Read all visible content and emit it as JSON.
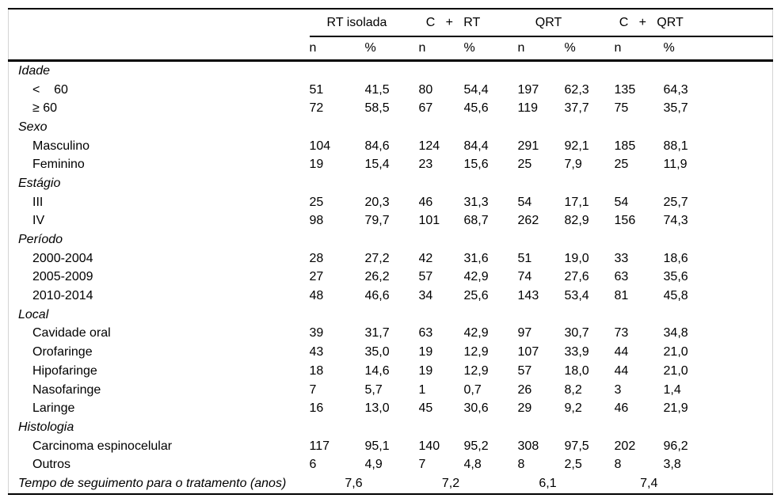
{
  "table": {
    "groups": [
      {
        "label": "RT isolada"
      },
      {
        "label": "C   +   RT"
      },
      {
        "label": "QRT"
      },
      {
        "label": "C   +   QRT"
      }
    ],
    "subheader": {
      "n": "n",
      "pct": "%"
    },
    "rows": [
      {
        "type": "section",
        "label": "Idade"
      },
      {
        "type": "item",
        "label": "<    60",
        "values": [
          "51",
          "41,5",
          "80",
          "54,4",
          "197",
          "62,3",
          "135",
          "64,3"
        ]
      },
      {
        "type": "item",
        "label": "≥ 60",
        "values": [
          "72",
          "58,5",
          "67",
          "45,6",
          "119",
          "37,7",
          "75",
          "35,7"
        ]
      },
      {
        "type": "section",
        "label": "Sexo"
      },
      {
        "type": "item",
        "label": "Masculino",
        "values": [
          "104",
          "84,6",
          "124",
          "84,4",
          "291",
          "92,1",
          "185",
          "88,1"
        ]
      },
      {
        "type": "item",
        "label": "Feminino",
        "values": [
          "19",
          "15,4",
          "23",
          "15,6",
          "25",
          "7,9",
          "25",
          "11,9"
        ]
      },
      {
        "type": "section",
        "label": "Estágio"
      },
      {
        "type": "item",
        "label": "III",
        "values": [
          "25",
          "20,3",
          "46",
          "31,3",
          "54",
          "17,1",
          "54",
          "25,7"
        ]
      },
      {
        "type": "item",
        "label": "IV",
        "values": [
          "98",
          "79,7",
          "101",
          "68,7",
          "262",
          "82,9",
          "156",
          "74,3"
        ]
      },
      {
        "type": "section",
        "label": "Período"
      },
      {
        "type": "item",
        "label": "2000-2004",
        "values": [
          "28",
          "27,2",
          "42",
          "31,6",
          "51",
          "19,0",
          "33",
          "18,6"
        ]
      },
      {
        "type": "item",
        "label": "2005-2009",
        "values": [
          "27",
          "26,2",
          "57",
          "42,9",
          "74",
          "27,6",
          "63",
          "35,6"
        ]
      },
      {
        "type": "item",
        "label": "2010-2014",
        "values": [
          "48",
          "46,6",
          "34",
          "25,6",
          "143",
          "53,4",
          "81",
          "45,8"
        ]
      },
      {
        "type": "section",
        "label": "Local"
      },
      {
        "type": "item",
        "label": "Cavidade oral",
        "values": [
          "39",
          "31,7",
          "63",
          "42,9",
          "97",
          "30,7",
          "73",
          "34,8"
        ]
      },
      {
        "type": "item",
        "label": "Orofaringe",
        "values": [
          "43",
          "35,0",
          "19",
          "12,9",
          "107",
          "33,9",
          "44",
          "21,0"
        ]
      },
      {
        "type": "item",
        "label": "Hipofaringe",
        "values": [
          "18",
          "14,6",
          "19",
          "12,9",
          "57",
          "18,0",
          "44",
          "21,0"
        ]
      },
      {
        "type": "item",
        "label": "Nasofaringe",
        "values": [
          "7",
          "5,7",
          "1",
          "0,7",
          "26",
          "8,2",
          "3",
          "1,4"
        ]
      },
      {
        "type": "item",
        "label": "Laringe",
        "values": [
          "16",
          "13,0",
          "45",
          "30,6",
          "29",
          "9,2",
          "46",
          "21,9"
        ]
      },
      {
        "type": "section",
        "label": "Histologia"
      },
      {
        "type": "item",
        "label": "Carcinoma espinocelular",
        "values": [
          "117",
          "95,1",
          "140",
          "95,2",
          "308",
          "97,5",
          "202",
          "96,2"
        ]
      },
      {
        "type": "item",
        "label": "Outros",
        "values": [
          "6",
          "4,9",
          "7",
          "4,8",
          "8",
          "2,5",
          "8",
          "3,8"
        ]
      },
      {
        "type": "footer",
        "label": "Tempo de seguimento para o tratamento (anos)",
        "group_values": [
          "7,6",
          "7,2",
          "6,1",
          "7,4"
        ]
      }
    ]
  }
}
